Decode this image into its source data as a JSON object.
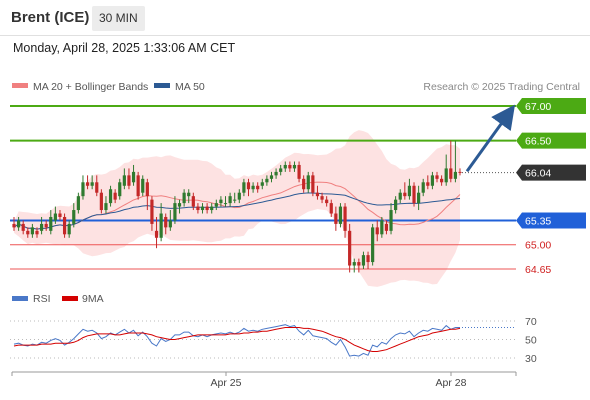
{
  "header": {
    "instrument": "Brent (ICE)",
    "timeframe": "30 MIN",
    "datetime": "Monday, April 28, 2025 1:33:06 AM CET"
  },
  "legend": {
    "ma20_label": "MA 20 + Bollinger Bands",
    "ma50_label": "MA 50",
    "copyright": "Research © 2025 Trading Central",
    "ma20_color": "#f08080",
    "ma50_color": "#2c5a94"
  },
  "rsi_legend": {
    "rsi_label": "RSI",
    "ma9_label": "9MA",
    "rsi_color": "#4a78c8",
    "ma9_color": "#d40000"
  },
  "colors": {
    "up": "#2f7a2f",
    "down": "#c42828",
    "resistance": "#4caa14",
    "support": "#ee5555",
    "pivot": "#2060d8",
    "current": "#333333",
    "band_fill": "#fde2e2"
  },
  "chart_data": [
    {
      "type": "candlestick",
      "title": "Brent (ICE)",
      "timeframe": "30 MIN",
      "x_ticks": [
        "Apr 25",
        "Apr 28"
      ],
      "ylim": [
        64.4,
        67.2
      ],
      "levels": [
        {
          "label": "67.00",
          "value": 67.0,
          "kind": "resistance"
        },
        {
          "label": "66.50",
          "value": 66.5,
          "kind": "resistance"
        },
        {
          "label": "66.04",
          "value": 66.04,
          "kind": "current"
        },
        {
          "label": "65.35",
          "value": 65.35,
          "kind": "pivot"
        },
        {
          "label": "65.00",
          "value": 65.0,
          "kind": "support"
        },
        {
          "label": "64.65",
          "value": 64.65,
          "kind": "support"
        }
      ],
      "forecast_arrow": {
        "from": 66.06,
        "to": 66.88,
        "direction": "up"
      },
      "candles": [
        [
          65.3,
          65.25,
          65.4,
          65.2
        ],
        [
          65.25,
          65.35,
          65.4,
          65.2
        ],
        [
          65.3,
          65.2,
          65.35,
          65.15
        ],
        [
          65.2,
          65.15,
          65.25,
          65.1
        ],
        [
          65.15,
          65.25,
          65.3,
          65.1
        ],
        [
          65.2,
          65.15,
          65.25,
          65.1
        ],
        [
          65.2,
          65.3,
          65.4,
          65.15
        ],
        [
          65.3,
          65.25,
          65.35,
          65.2
        ],
        [
          65.2,
          65.4,
          65.5,
          65.15
        ],
        [
          65.35,
          65.45,
          65.55,
          65.3
        ],
        [
          65.45,
          65.4,
          65.5,
          65.35
        ],
        [
          65.4,
          65.15,
          65.45,
          65.1
        ],
        [
          65.15,
          65.3,
          65.35,
          65.1
        ],
        [
          65.3,
          65.5,
          65.6,
          65.25
        ],
        [
          65.5,
          65.7,
          65.75,
          65.45
        ],
        [
          65.7,
          65.9,
          66.0,
          65.65
        ],
        [
          65.9,
          65.85,
          66.0,
          65.8
        ],
        [
          65.85,
          65.9,
          66.0,
          65.8
        ],
        [
          65.9,
          65.75,
          66.0,
          65.7
        ],
        [
          65.75,
          65.5,
          65.8,
          65.45
        ],
        [
          65.5,
          65.6,
          65.7,
          65.45
        ],
        [
          65.6,
          65.8,
          65.85,
          65.55
        ],
        [
          65.75,
          65.65,
          65.8,
          65.6
        ],
        [
          65.7,
          65.9,
          65.95,
          65.65
        ],
        [
          65.85,
          66.0,
          66.1,
          65.8
        ],
        [
          66.0,
          65.85,
          66.1,
          65.8
        ],
        [
          65.9,
          66.05,
          66.15,
          65.85
        ],
        [
          66.0,
          65.7,
          66.05,
          65.65
        ],
        [
          65.75,
          65.95,
          66.0,
          65.7
        ],
        [
          65.9,
          65.7,
          65.95,
          65.5
        ],
        [
          65.65,
          65.3,
          65.7,
          65.2
        ],
        [
          65.2,
          65.1,
          65.4,
          64.95
        ],
        [
          65.1,
          65.45,
          65.6,
          65.05
        ],
        [
          65.4,
          65.25,
          65.45,
          65.15
        ],
        [
          65.25,
          65.35,
          65.5,
          65.2
        ],
        [
          65.35,
          65.6,
          65.7,
          65.3
        ],
        [
          65.55,
          65.6,
          65.65,
          65.45
        ],
        [
          65.6,
          65.75,
          65.8,
          65.55
        ],
        [
          65.7,
          65.75,
          65.8,
          65.6
        ],
        [
          65.7,
          65.55,
          65.75,
          65.5
        ],
        [
          65.55,
          65.5,
          65.6,
          65.45
        ],
        [
          65.5,
          65.55,
          65.6,
          65.45
        ],
        [
          65.55,
          65.5,
          65.6,
          65.45
        ],
        [
          65.5,
          65.55,
          65.6,
          65.45
        ],
        [
          65.55,
          65.6,
          65.65,
          65.5
        ],
        [
          65.6,
          65.65,
          65.7,
          65.55
        ],
        [
          65.6,
          65.6,
          65.7,
          65.55
        ],
        [
          65.6,
          65.7,
          65.75,
          65.55
        ],
        [
          65.65,
          65.65,
          65.75,
          65.6
        ],
        [
          65.65,
          65.75,
          65.8,
          65.6
        ],
        [
          65.75,
          65.9,
          65.95,
          65.7
        ],
        [
          65.9,
          65.8,
          65.95,
          65.7
        ],
        [
          65.8,
          65.85,
          65.9,
          65.75
        ],
        [
          65.85,
          65.8,
          65.9,
          65.75
        ],
        [
          65.85,
          65.9,
          65.95,
          65.8
        ],
        [
          65.9,
          65.95,
          66.0,
          65.85
        ],
        [
          65.95,
          66.0,
          66.05,
          65.9
        ],
        [
          66.0,
          66.05,
          66.1,
          65.95
        ],
        [
          66.05,
          66.1,
          66.15,
          66.0
        ],
        [
          66.1,
          66.15,
          66.2,
          66.05
        ],
        [
          66.15,
          66.1,
          66.2,
          66.05
        ],
        [
          66.1,
          66.15,
          66.2,
          66.05
        ],
        [
          66.15,
          65.95,
          66.2,
          65.9
        ],
        [
          65.95,
          65.8,
          66.0,
          65.75
        ],
        [
          65.8,
          66.0,
          66.05,
          65.75
        ],
        [
          66.0,
          65.75,
          66.05,
          65.7
        ],
        [
          65.75,
          65.7,
          65.85,
          65.65
        ],
        [
          65.7,
          65.65,
          65.75,
          65.6
        ],
        [
          65.65,
          65.6,
          65.7,
          65.55
        ],
        [
          65.6,
          65.45,
          65.65,
          65.4
        ],
        [
          65.45,
          65.3,
          65.55,
          65.2
        ],
        [
          65.3,
          65.55,
          65.6,
          65.25
        ],
        [
          65.55,
          65.2,
          65.6,
          65.1
        ],
        [
          65.2,
          64.7,
          65.3,
          64.6
        ],
        [
          64.7,
          64.75,
          64.8,
          64.6
        ],
        [
          64.75,
          64.7,
          64.8,
          64.6
        ],
        [
          64.7,
          64.85,
          64.9,
          64.65
        ],
        [
          64.85,
          64.75,
          64.9,
          64.65
        ],
        [
          64.75,
          65.25,
          65.3,
          64.7
        ],
        [
          65.25,
          65.15,
          65.35,
          65.05
        ],
        [
          65.15,
          65.35,
          65.4,
          65.1
        ],
        [
          65.3,
          65.2,
          65.35,
          65.15
        ],
        [
          65.2,
          65.5,
          65.6,
          65.15
        ],
        [
          65.5,
          65.65,
          65.7,
          65.45
        ],
        [
          65.65,
          65.75,
          65.8,
          65.6
        ],
        [
          65.75,
          65.7,
          65.9,
          65.65
        ],
        [
          65.7,
          65.85,
          65.95,
          65.65
        ],
        [
          65.85,
          65.6,
          65.9,
          65.55
        ],
        [
          65.6,
          65.75,
          65.85,
          65.5
        ],
        [
          65.75,
          65.9,
          65.95,
          65.7
        ],
        [
          65.9,
          65.85,
          66.0,
          65.8
        ],
        [
          65.85,
          66.0,
          66.05,
          65.8
        ],
        [
          66.0,
          65.95,
          66.05,
          65.9
        ],
        [
          65.95,
          65.9,
          66.0,
          65.85
        ],
        [
          65.9,
          66.1,
          66.3,
          65.85
        ],
        [
          66.1,
          65.95,
          66.5,
          65.9
        ],
        [
          65.95,
          66.05,
          66.5,
          65.9
        ],
        [
          66.05,
          66.04,
          66.1,
          66.0
        ]
      ]
    },
    {
      "type": "line",
      "title": "RSI",
      "yticks": [
        30,
        50,
        70
      ],
      "ylim": [
        25,
        75
      ],
      "series": [
        {
          "name": "RSI",
          "values": [
            45,
            46,
            44,
            43,
            45,
            44,
            47,
            46,
            49,
            51,
            49,
            44,
            47,
            51,
            56,
            61,
            59,
            60,
            57,
            51,
            53,
            57,
            55,
            58,
            61,
            57,
            60,
            54,
            58,
            53,
            46,
            43,
            51,
            48,
            50,
            55,
            55,
            58,
            58,
            54,
            53,
            55,
            53,
            55,
            56,
            57,
            56,
            58,
            56,
            58,
            62,
            59,
            60,
            59,
            61,
            62,
            63,
            64,
            65,
            66,
            64,
            65,
            59,
            55,
            60,
            54,
            53,
            52,
            51,
            47,
            44,
            50,
            42,
            32,
            33,
            32,
            35,
            33,
            44,
            42,
            47,
            45,
            51,
            55,
            57,
            56,
            59,
            53,
            57,
            60,
            59,
            62,
            61,
            60,
            65,
            61,
            63,
            63
          ]
        },
        {
          "name": "9MA",
          "values": [
            43,
            44,
            44,
            44,
            44,
            44,
            45,
            45,
            45,
            46,
            46,
            46,
            46,
            47,
            49,
            52,
            54,
            55,
            56,
            56,
            56,
            56,
            55,
            55,
            56,
            57,
            57,
            57,
            57,
            56,
            55,
            53,
            52,
            51,
            50,
            50,
            51,
            52,
            53,
            54,
            55,
            55,
            55,
            55,
            55,
            55,
            55,
            56,
            56,
            56,
            57,
            57,
            58,
            58,
            59,
            59,
            60,
            61,
            62,
            63,
            63,
            63,
            63,
            62,
            62,
            61,
            60,
            59,
            57,
            55,
            53,
            52,
            50,
            47,
            44,
            42,
            40,
            38,
            37,
            37,
            38,
            39,
            41,
            43,
            45,
            47,
            49,
            51,
            53,
            54,
            55,
            57,
            58,
            59,
            60,
            61,
            61,
            62
          ]
        }
      ]
    }
  ]
}
